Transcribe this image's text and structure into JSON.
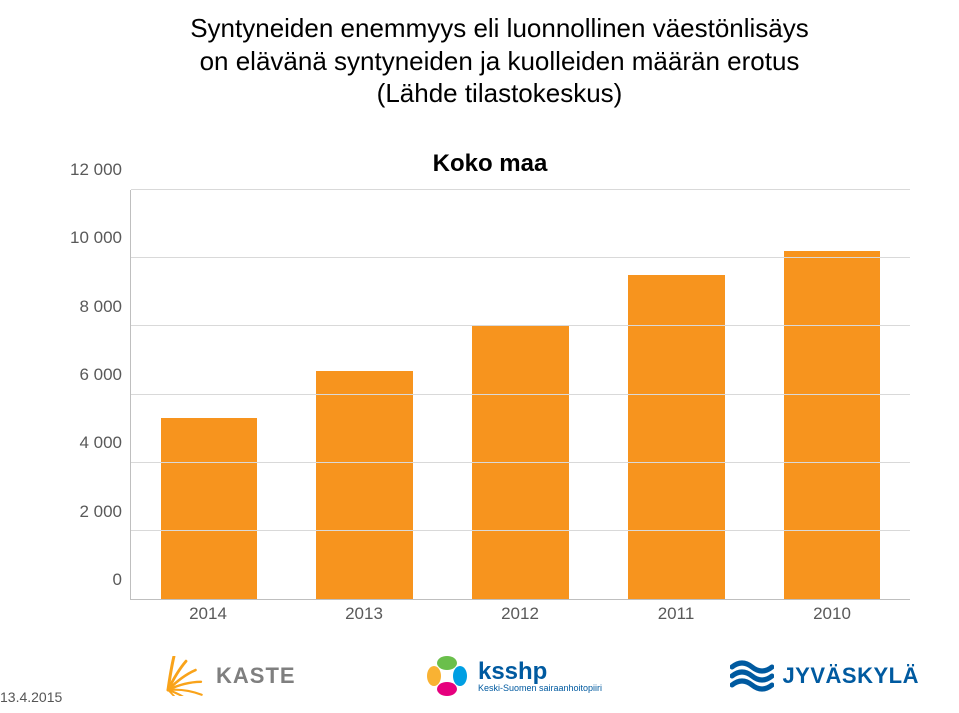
{
  "title": {
    "line1": "Syntyneiden enemmyys eli luonnollinen väestönlisäys",
    "line2": "on elävänä syntyneiden ja kuolleiden määrän erotus",
    "line3": "(Lähde tilastokeskus)",
    "fontsize": 26,
    "color": "#000000"
  },
  "chart": {
    "type": "bar",
    "title": "Koko maa",
    "title_fontsize": 24,
    "title_color": "#000000",
    "categories": [
      "2014",
      "2013",
      "2012",
      "2011",
      "2010"
    ],
    "values": [
      5300,
      6700,
      8000,
      9500,
      10200
    ],
    "bar_color": "#f7941e",
    "bar_width": 0.62,
    "ylim": [
      0,
      12000
    ],
    "ytick_step": 2000,
    "ytick_labels": [
      "0",
      "2 000",
      "4 000",
      "6 000",
      "8 000",
      "10 000",
      "12 000"
    ],
    "axis_label_fontsize": 17,
    "axis_label_color": "#595959",
    "grid_color": "#d9d9d9",
    "axis_line_color": "#bfbfbf",
    "background_color": "#ffffff"
  },
  "footer": {
    "date": "13.4.2015",
    "logos": {
      "kaste": {
        "label": "KASTE",
        "color": "#f9a31a",
        "text_color": "#7f7f7f",
        "fontsize": 22
      },
      "ksshp": {
        "label": "ksshp",
        "sub": "Keski-Suomen sairaanhoitopiiri",
        "label_color": "#005aa0",
        "label_fontsize": 24,
        "sub_fontsize": 9,
        "petal_colors": [
          "#6abf4b",
          "#009fe3",
          "#e6007e",
          "#f9b233"
        ]
      },
      "jyvaskyla": {
        "label": "JYVÄSKYLÄ",
        "color": "#005aa0",
        "fontsize": 22
      }
    }
  }
}
